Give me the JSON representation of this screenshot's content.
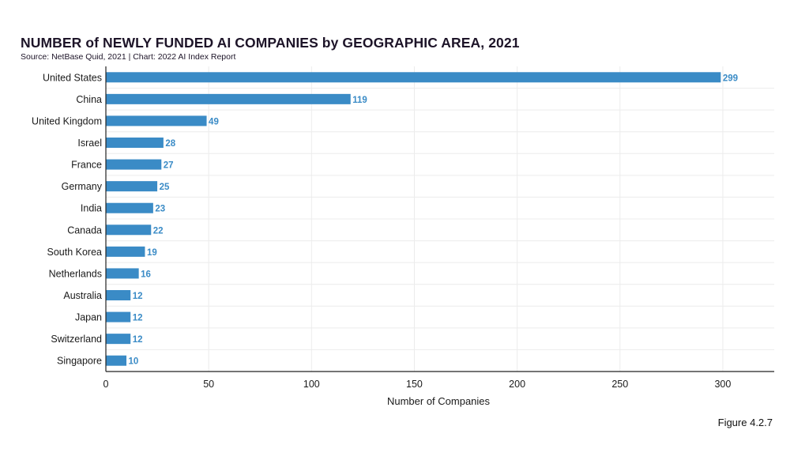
{
  "title": "NUMBER of NEWLY FUNDED AI COMPANIES by GEOGRAPHIC AREA, 2021",
  "subtitle": "Source: NetBase Quid, 2021 | Chart: 2022 AI Index Report",
  "figure_label": "Figure 4.2.7",
  "colors": {
    "bar": "#3a8bc6",
    "value_label": "#3a8bc6",
    "grid": "#ececec",
    "axis": "#222222"
  },
  "chart_data": {
    "type": "bar",
    "orientation": "horizontal",
    "categories": [
      "United States",
      "China",
      "United Kingdom",
      "Israel",
      "France",
      "Germany",
      "India",
      "Canada",
      "South Korea",
      "Netherlands",
      "Australia",
      "Japan",
      "Switzerland",
      "Singapore"
    ],
    "values": [
      299,
      119,
      49,
      28,
      27,
      25,
      23,
      22,
      19,
      16,
      12,
      12,
      12,
      10
    ],
    "xlabel": "Number of Companies",
    "ylabel": "",
    "xlim": [
      0,
      325
    ],
    "xticks": [
      0,
      50,
      100,
      150,
      200,
      250,
      300
    ],
    "grid": true
  }
}
